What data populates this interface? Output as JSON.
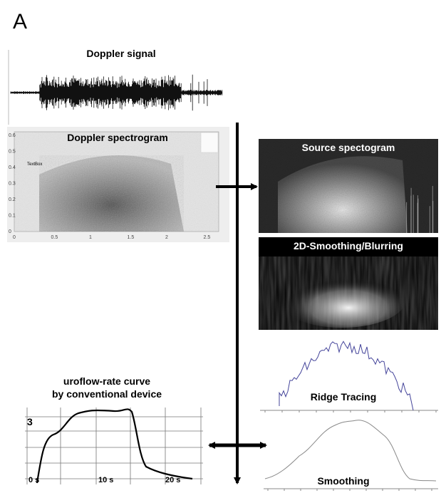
{
  "panel_label": "A",
  "doppler_signal": {
    "title": "Doppler signal"
  },
  "doppler_spectrogram": {
    "title": "Doppler spectrogram",
    "textbox": "TextBox",
    "yticks": [
      "0.6",
      "0.5",
      "0.4",
      "0.3",
      "0.2",
      "0.1",
      "0"
    ],
    "xticks": [
      "0",
      "0.5",
      "1",
      "1.5",
      "2",
      "2.5"
    ]
  },
  "source_spectrogram": {
    "title": "Source spectogram"
  },
  "smoothing_2d": {
    "title": "2D-Smoothing/Blurring"
  },
  "ridge_tracing": {
    "title": "Ridge Tracing"
  },
  "uroflow": {
    "title_lines": [
      "uroflow-rate curve",
      "by conventional device"
    ],
    "y_label": "3",
    "x_labels": [
      "0 s",
      "10 s",
      "20 s"
    ]
  },
  "smoothing": {
    "title": "Smoothing"
  }
}
